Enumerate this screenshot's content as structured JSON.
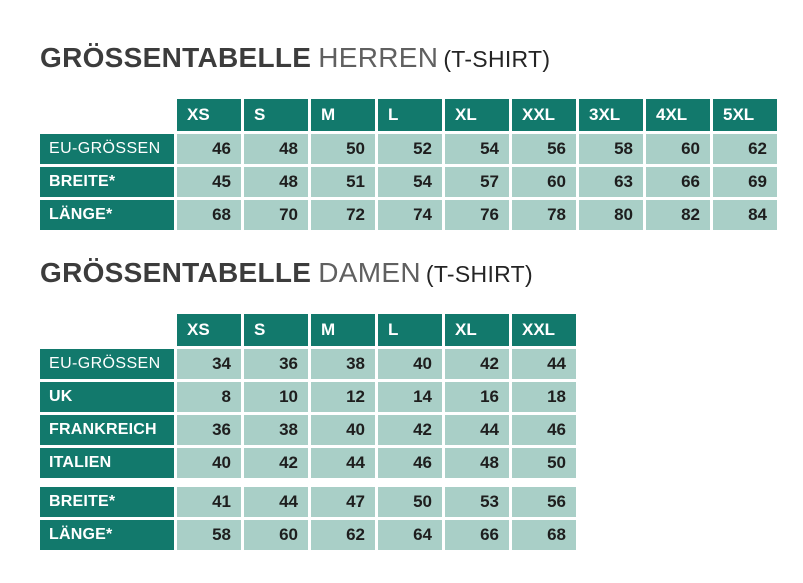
{
  "colors": {
    "teal_dark": "#12796c",
    "teal_light": "#a9cfc7",
    "title_main": "#3c3c3c",
    "title_sub": "#606060",
    "title_suffix": "#242424",
    "value_text": "#1e1e1e",
    "background": "#ffffff"
  },
  "chart_data": [
    {
      "type": "table",
      "title": "GRÖSSENTABELLE HERREN (T-SHIRT)",
      "title_parts": {
        "main": "GRÖSSENTABELLE",
        "sub": "HERREN",
        "suffix": "(T-SHIRT)"
      },
      "columns": [
        "XS",
        "S",
        "M",
        "L",
        "XL",
        "XXL",
        "3XL",
        "4XL",
        "5XL"
      ],
      "rows": [
        {
          "label": "EU-GRÖSSEN",
          "bold": false,
          "extra_gap_before": false,
          "values": [
            46,
            48,
            50,
            52,
            54,
            56,
            58,
            60,
            62
          ]
        },
        {
          "label": "BREITE*",
          "bold": true,
          "extra_gap_before": false,
          "values": [
            45,
            48,
            51,
            54,
            57,
            60,
            63,
            66,
            69
          ]
        },
        {
          "label": "LÄNGE*",
          "bold": true,
          "extra_gap_before": false,
          "values": [
            68,
            70,
            72,
            74,
            76,
            78,
            80,
            82,
            84
          ]
        }
      ]
    },
    {
      "type": "table",
      "title": "GRÖSSENTABELLE DAMEN (T-SHIRT)",
      "title_parts": {
        "main": "GRÖSSENTABELLE",
        "sub": "DAMEN",
        "suffix": "(T-SHIRT)"
      },
      "columns": [
        "XS",
        "S",
        "M",
        "L",
        "XL",
        "XXL"
      ],
      "rows": [
        {
          "label": "EU-GRÖSSEN",
          "bold": false,
          "extra_gap_before": false,
          "values": [
            34,
            36,
            38,
            40,
            42,
            44
          ]
        },
        {
          "label": "UK",
          "bold": true,
          "extra_gap_before": false,
          "values": [
            8,
            10,
            12,
            14,
            16,
            18
          ]
        },
        {
          "label": "FRANKREICH",
          "bold": true,
          "extra_gap_before": false,
          "values": [
            36,
            38,
            40,
            42,
            44,
            46
          ]
        },
        {
          "label": "ITALIEN",
          "bold": true,
          "extra_gap_before": false,
          "values": [
            40,
            42,
            44,
            46,
            48,
            50
          ]
        },
        {
          "label": "BREITE*",
          "bold": true,
          "extra_gap_before": true,
          "values": [
            41,
            44,
            47,
            50,
            53,
            56
          ]
        },
        {
          "label": "LÄNGE*",
          "bold": true,
          "extra_gap_before": false,
          "values": [
            58,
            60,
            62,
            64,
            66,
            68
          ]
        }
      ]
    }
  ]
}
